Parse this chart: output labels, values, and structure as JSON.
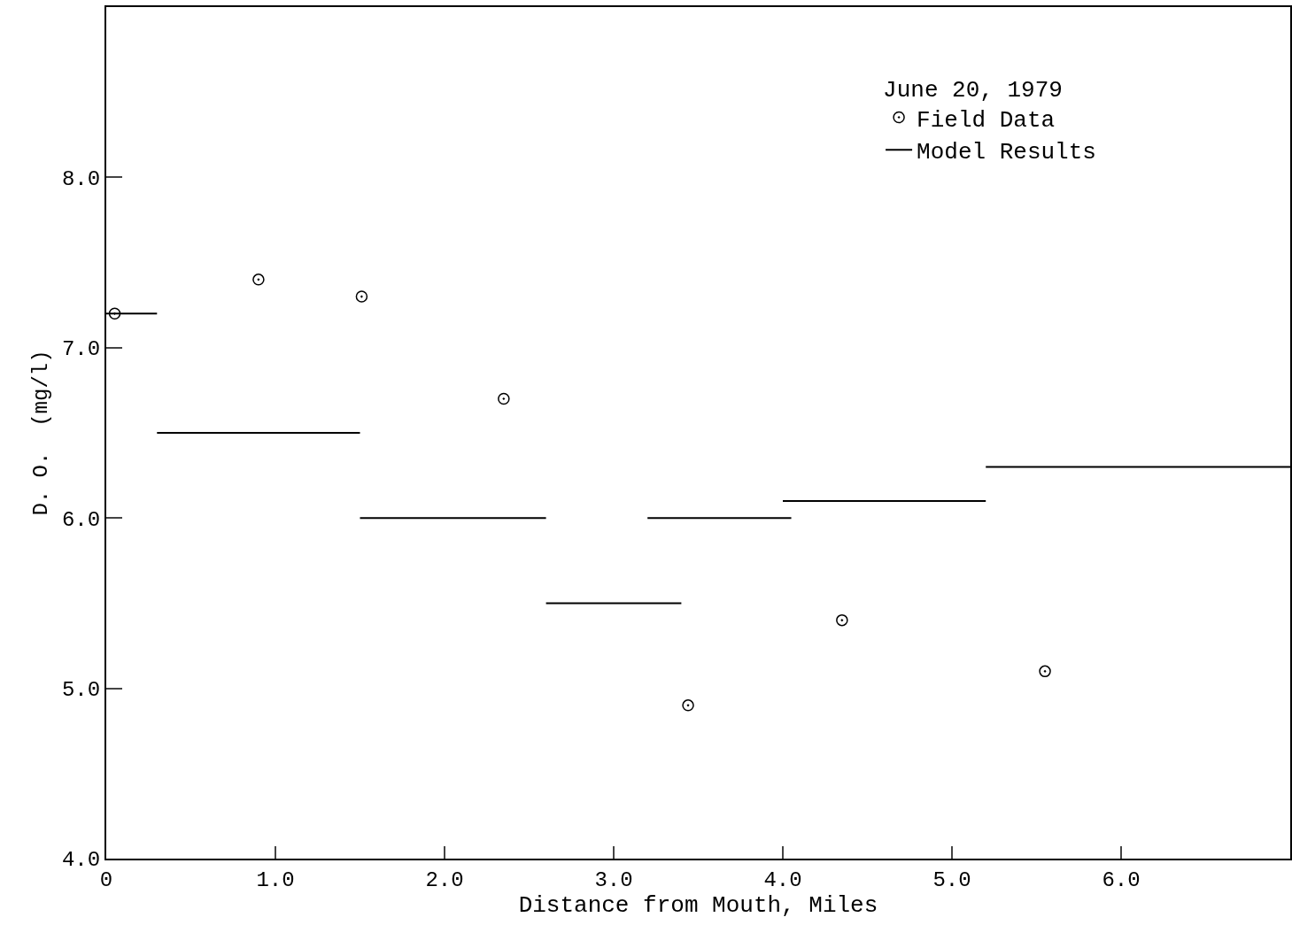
{
  "chart_data": {
    "type": "scatter",
    "xlabel": "Distance from Mouth, Miles",
    "ylabel": "D. O.  (mg/l)",
    "legend_title": "June 20, 1979",
    "legend": "top right",
    "grid": false,
    "xlim": [
      0,
      7.0
    ],
    "xticks": [
      0,
      {
        "value": 1,
        "label": "1.0"
      },
      {
        "value": 2,
        "label": "2.0"
      },
      {
        "value": 3,
        "label": "3.0"
      },
      {
        "value": 4,
        "label": "4.0"
      },
      {
        "value": 5,
        "label": "5.0"
      },
      {
        "value": 6,
        "label": "6.0"
      }
    ],
    "ylim": [
      4,
      9
    ],
    "yticks": [
      {
        "value": 4,
        "label": "4.0"
      },
      {
        "value": 5,
        "label": "5.0"
      },
      {
        "value": 6,
        "label": "6.0"
      },
      {
        "value": 7,
        "label": "7.0"
      },
      {
        "value": 8,
        "label": "8.0"
      }
    ],
    "series": [
      {
        "name": "Field Data",
        "marker": "circle",
        "color": "#000000",
        "x": [
          0.05,
          0.9,
          1.51,
          2.35,
          3.44,
          4.35,
          5.55
        ],
        "values": [
          7.2,
          7.4,
          7.3,
          6.7,
          4.9,
          5.4,
          5.1
        ]
      },
      {
        "name": "Model Results",
        "type": "line",
        "marker": "none",
        "line_style": "solid",
        "color": "#000000",
        "x": [
          0,
          0.3
        ],
        "values": [
          7.2,
          7.2
        ]
      },
      {
        "type": "line",
        "marker": "none",
        "line_style": "solid",
        "color": "#000000",
        "x": [
          0.3,
          1.5
        ],
        "values": [
          6.5,
          6.5
        ]
      },
      {
        "type": "line",
        "marker": "none",
        "line_style": "solid",
        "color": "#000000",
        "x": [
          1.5,
          2.6
        ],
        "values": [
          6.0,
          6.0
        ]
      },
      {
        "type": "line",
        "marker": "none",
        "line_style": "solid",
        "color": "#000000",
        "x": [
          2.6,
          3.4
        ],
        "values": [
          5.5,
          5.5
        ]
      },
      {
        "type": "line",
        "marker": "none",
        "line_style": "solid",
        "color": "#000000",
        "x": [
          3.2,
          4.05
        ],
        "values": [
          6.0,
          6.0
        ]
      },
      {
        "type": "line",
        "marker": "none",
        "line_style": "solid",
        "color": "#000000",
        "x": [
          4.0,
          5.2
        ],
        "values": [
          6.1,
          6.1
        ]
      },
      {
        "type": "line",
        "marker": "none",
        "line_style": "solid",
        "color": "#000000",
        "x": [
          5.2,
          7.0
        ],
        "values": [
          6.3,
          6.3
        ]
      }
    ]
  }
}
